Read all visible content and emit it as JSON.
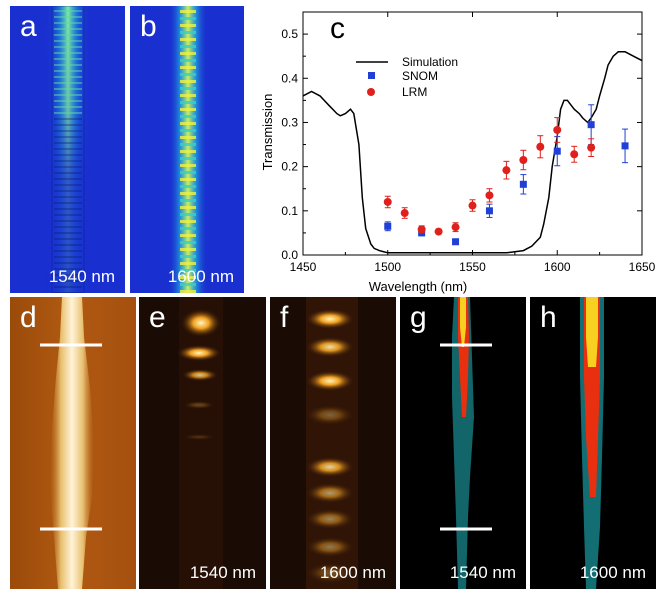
{
  "panels": {
    "a": {
      "label": "a",
      "wavelength": "1540 nm"
    },
    "b": {
      "label": "b",
      "wavelength": "1600 nm"
    },
    "c": {
      "label": "c"
    },
    "d": {
      "label": "d"
    },
    "e": {
      "label": "e",
      "wavelength": "1540 nm"
    },
    "f": {
      "label": "f",
      "wavelength": "1600 nm"
    },
    "g": {
      "label": "g",
      "wavelength": "1540 nm"
    },
    "h": {
      "label": "h",
      "wavelength": "1600 nm"
    }
  },
  "colors": {
    "simulation": "#000000",
    "snom": "#1f3fd6",
    "lrm": "#e0201c",
    "sim_bg": "#1a2fd0",
    "afm_bg": "#a8520e",
    "lrm_bg": "#1a0c04",
    "snom_bg": "#000000"
  },
  "chart_data": {
    "type": "scatter",
    "xlabel": "Wavelength (nm)",
    "ylabel": "Transmission",
    "xlim": [
      1450,
      1650
    ],
    "ylim": [
      0.0,
      0.55
    ],
    "xticks": [
      1450,
      1500,
      1550,
      1600,
      1650
    ],
    "yticks": [
      0.0,
      0.1,
      0.2,
      0.3,
      0.4,
      0.5
    ],
    "legend_position": "top-left",
    "series": [
      {
        "name": "Simulation",
        "kind": "line",
        "x": [
          1450,
          1455,
          1460,
          1465,
          1470,
          1472,
          1475,
          1478,
          1480,
          1483,
          1485,
          1487,
          1490,
          1492,
          1495,
          1500,
          1510,
          1520,
          1530,
          1540,
          1550,
          1560,
          1570,
          1580,
          1585,
          1590,
          1592,
          1595,
          1597,
          1600,
          1602,
          1604,
          1606,
          1608,
          1610,
          1613,
          1615,
          1618,
          1620,
          1623,
          1625,
          1628,
          1630,
          1633,
          1636,
          1640,
          1645,
          1650
        ],
        "y": [
          0.36,
          0.37,
          0.36,
          0.34,
          0.32,
          0.315,
          0.32,
          0.33,
          0.32,
          0.25,
          0.13,
          0.06,
          0.025,
          0.015,
          0.01,
          0.005,
          0.005,
          0.005,
          0.005,
          0.005,
          0.005,
          0.005,
          0.005,
          0.01,
          0.02,
          0.04,
          0.07,
          0.13,
          0.2,
          0.27,
          0.33,
          0.35,
          0.35,
          0.34,
          0.33,
          0.32,
          0.31,
          0.3,
          0.31,
          0.33,
          0.36,
          0.4,
          0.43,
          0.45,
          0.46,
          0.46,
          0.45,
          0.44
        ]
      },
      {
        "name": "SNOM",
        "kind": "square",
        "x": [
          1500,
          1520,
          1540,
          1560,
          1580,
          1600,
          1620,
          1640
        ],
        "y": [
          0.065,
          0.05,
          0.03,
          0.1,
          0.16,
          0.235,
          0.295,
          0.247
        ],
        "err": [
          0.01,
          0.006,
          0.005,
          0.015,
          0.022,
          0.033,
          0.045,
          0.038
        ]
      },
      {
        "name": "LRM",
        "kind": "circle",
        "x": [
          1500,
          1510,
          1520,
          1530,
          1540,
          1550,
          1560,
          1570,
          1580,
          1590,
          1600,
          1610,
          1620
        ],
        "y": [
          0.12,
          0.095,
          0.058,
          0.053,
          0.063,
          0.112,
          0.135,
          0.192,
          0.215,
          0.245,
          0.283,
          0.228,
          0.243
        ],
        "err": [
          0.013,
          0.012,
          0.008,
          0.005,
          0.01,
          0.013,
          0.015,
          0.02,
          0.022,
          0.025,
          0.028,
          0.018,
          0.02
        ]
      }
    ]
  }
}
